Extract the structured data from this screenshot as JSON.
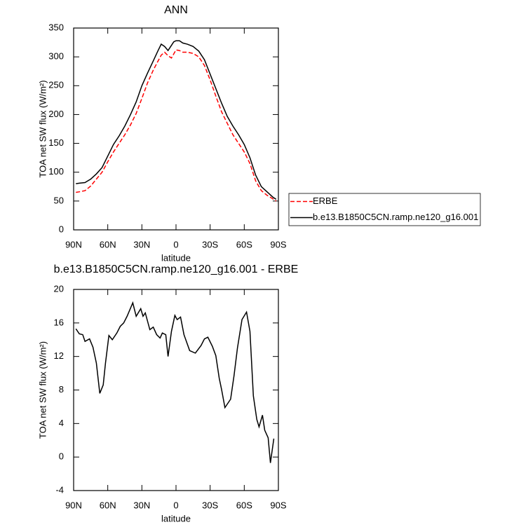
{
  "chart_data": [
    {
      "type": "line",
      "title": "ANN",
      "xlabel": "latitude",
      "ylabel": "TOA net SW flux (W/m²)",
      "xlim": [
        90,
        -90
      ],
      "xticks": [
        {
          "value": 90,
          "label": "90N"
        },
        {
          "value": 60,
          "label": "60N"
        },
        {
          "value": 30,
          "label": "30N"
        },
        0,
        {
          "value": -30,
          "label": "30S"
        },
        {
          "value": -60,
          "label": "60S"
        },
        {
          "value": -90,
          "label": "90S"
        }
      ],
      "ylim": [
        0,
        350
      ],
      "yticks": [
        0,
        50,
        100,
        150,
        200,
        250,
        300,
        350
      ],
      "legend": "outside-right",
      "x": [
        88,
        85,
        80,
        75,
        70,
        65,
        60,
        55,
        50,
        45,
        40,
        35,
        30,
        25,
        20,
        16,
        13,
        10,
        7,
        4,
        2,
        0,
        -3,
        -6,
        -10,
        -15,
        -20,
        -25,
        -30,
        -35,
        -40,
        -45,
        -50,
        -55,
        -60,
        -65,
        -70,
        -75,
        -80,
        -85,
        -88
      ],
      "series": [
        {
          "name": "ERBE",
          "color": "#ff0000",
          "dashed": true,
          "values": [
            65,
            66,
            68,
            76,
            88,
            100,
            118,
            135,
            150,
            165,
            182,
            202,
            228,
            255,
            277,
            292,
            303,
            308,
            302,
            298,
            305,
            312,
            311,
            308,
            308,
            306,
            300,
            285,
            260,
            232,
            205,
            185,
            165,
            150,
            135,
            115,
            85,
            68,
            60,
            54,
            50
          ]
        },
        {
          "name": "b.e13.B1850C5CN.ramp.ne120_g16.001",
          "color": "#000000",
          "dashed": false,
          "values": [
            80,
            81,
            82,
            88,
            97,
            108,
            128,
            148,
            163,
            180,
            200,
            222,
            250,
            272,
            293,
            310,
            322,
            318,
            311,
            320,
            326,
            328,
            328,
            324,
            322,
            318,
            310,
            295,
            270,
            245,
            220,
            197,
            180,
            165,
            148,
            125,
            95,
            75,
            66,
            57,
            53
          ]
        }
      ]
    },
    {
      "type": "line",
      "title": "b.e13.B1850C5CN.ramp.ne120_g16.001 - ERBE",
      "xlabel": "latitude",
      "ylabel": "TOA net SW flux (W/m²)",
      "xlim": [
        90,
        -90
      ],
      "xticks": [
        {
          "value": 90,
          "label": "90N"
        },
        {
          "value": 60,
          "label": "60N"
        },
        {
          "value": 30,
          "label": "30N"
        },
        0,
        {
          "value": -30,
          "label": "30S"
        },
        {
          "value": -60,
          "label": "60S"
        },
        {
          "value": -90,
          "label": "90S"
        }
      ],
      "ylim": [
        -4,
        20
      ],
      "yticks": [
        -4,
        0,
        4,
        8,
        12,
        16,
        20
      ],
      "x": [
        88,
        85,
        82,
        80,
        76,
        73,
        70,
        67,
        64,
        62,
        59,
        56,
        52,
        49,
        46,
        43,
        38,
        35,
        31,
        29,
        27,
        23,
        20,
        17,
        14,
        12,
        9,
        7,
        4,
        1,
        -1,
        -4,
        -7,
        -12,
        -17,
        -22,
        -25,
        -28,
        -32,
        -35,
        -38,
        -40,
        -43,
        -48,
        -51,
        -54,
        -58,
        -62,
        -65,
        -68,
        -71,
        -73,
        -76,
        -78,
        -81,
        -83,
        -86
      ],
      "color": "#000000",
      "values": [
        15.3,
        14.7,
        14.6,
        13.8,
        14.1,
        13.1,
        11.2,
        7.6,
        8.6,
        11.2,
        14.5,
        14.0,
        14.8,
        15.6,
        16.0,
        16.8,
        18.4,
        16.8,
        17.7,
        16.8,
        17.2,
        15.2,
        15.5,
        14.6,
        14.2,
        14.8,
        14.6,
        12.0,
        15.0,
        16.9,
        16.4,
        16.7,
        14.6,
        12.7,
        12.4,
        13.3,
        14.1,
        14.3,
        13.2,
        12.1,
        9.4,
        8.1,
        5.9,
        6.9,
        9.7,
        13.0,
        16.4,
        17.3,
        15.0,
        7.3,
        4.5,
        3.6,
        5.0,
        3.2,
        2.3,
        -0.7,
        2.2
      ]
    }
  ]
}
